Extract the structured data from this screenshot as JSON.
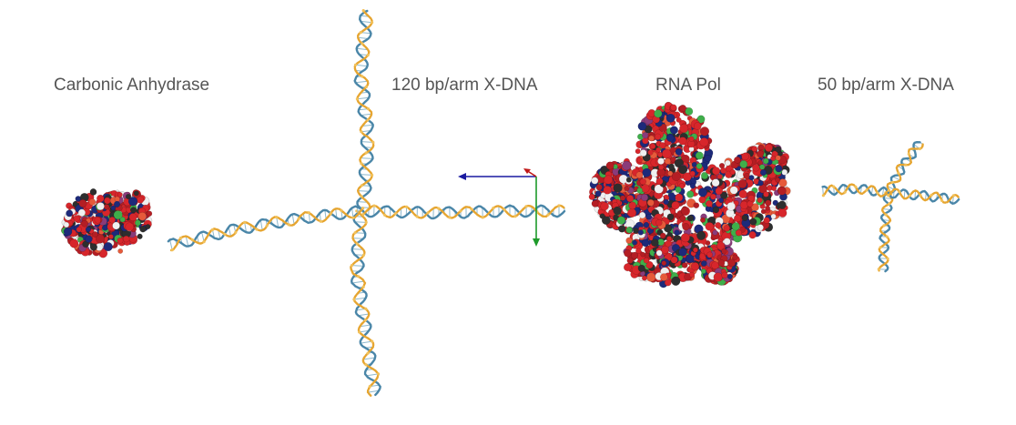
{
  "labels": {
    "carbonic_anhydrase": "Carbonic Anhydrase",
    "x_dna_120": "120 bp/arm X-DNA",
    "rna_pol": "RNA Pol",
    "x_dna_50": "50 bp/arm X-DNA"
  },
  "colors": {
    "label_text": "#555555",
    "dna_strand_a": "#4a86a8",
    "dna_strand_b": "#e6a530",
    "dna_rung": "#8fb8cc",
    "atom_palette": [
      "#d7262b",
      "#b41e24",
      "#1d2a7a",
      "#2e2e2e",
      "#3fae4a",
      "#f0f0f0",
      "#8a3b7a",
      "#e65a3a"
    ],
    "axis_x": "#1a1aa0",
    "axis_y": "#1d9a2a",
    "axis_z": "#c01818"
  },
  "icons": {
    "axis_gizmo": "xyz-axes-icon"
  }
}
